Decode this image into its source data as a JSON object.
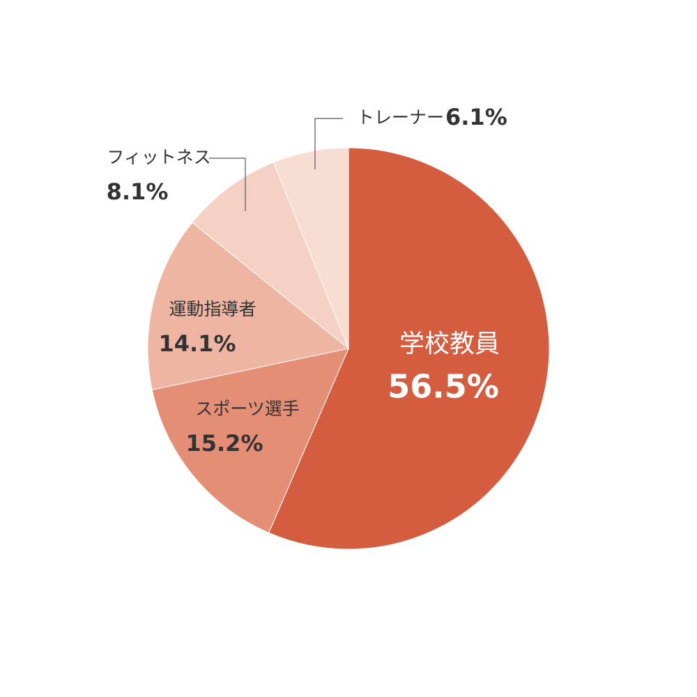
{
  "chart_data": {
    "type": "pie",
    "categories": [
      "学校教員",
      "スポーツ選手",
      "運動指導者",
      "フィットネス",
      "トレーナー"
    ],
    "values": [
      56.5,
      15.2,
      14.1,
      8.1,
      6.1
    ],
    "value_labels": [
      "56.5%",
      "15.2%",
      "14.1%",
      "8.1%",
      "6.1%"
    ],
    "colors": [
      "#d45d40",
      "#e58e76",
      "#efb5a3",
      "#f5d0c4",
      "#f8ddd3"
    ]
  }
}
